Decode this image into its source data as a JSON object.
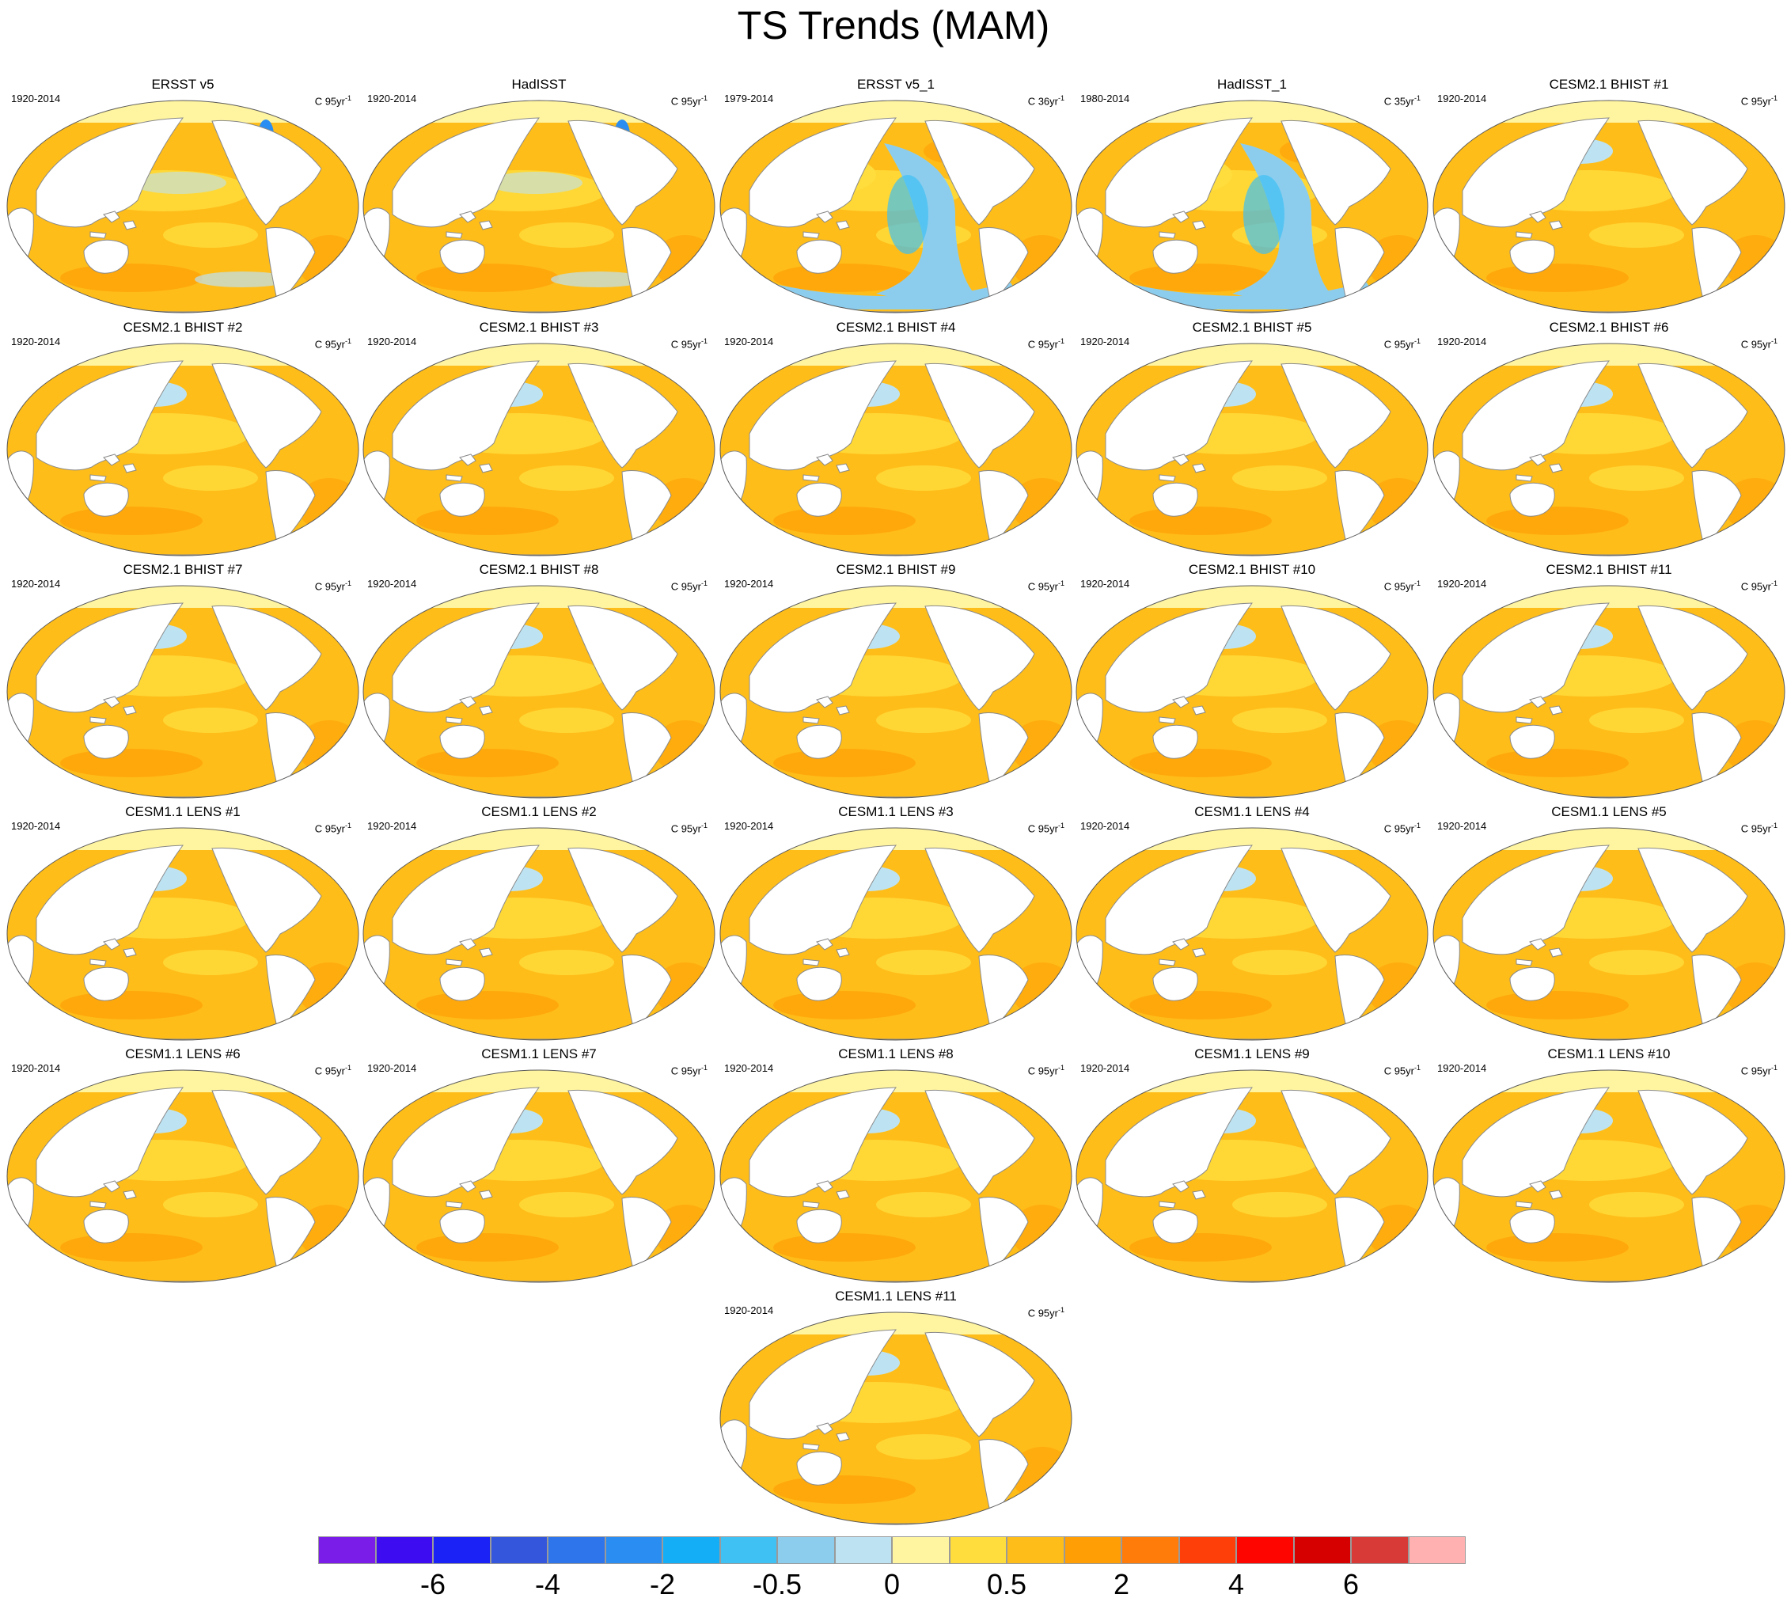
{
  "figure": {
    "title": "TS Trends (MAM)"
  },
  "panels": [
    {
      "title": "ERSST v5",
      "period": "1920-2014",
      "units": "C 95yr",
      "units_exp": "-1",
      "variant": "obs"
    },
    {
      "title": "HadISST",
      "period": "1920-2014",
      "units": "C 95yr",
      "units_exp": "-1",
      "variant": "obs"
    },
    {
      "title": "ERSST v5_1",
      "period": "1979-2014",
      "units": "C 36yr",
      "units_exp": "-1",
      "variant": "cool"
    },
    {
      "title": "HadISST_1",
      "period": "1980-2014",
      "units": "C 35yr",
      "units_exp": "-1",
      "variant": "cool"
    },
    {
      "title": "CESM2.1 BHIST #1",
      "period": "1920-2014",
      "units": "C 95yr",
      "units_exp": "-1",
      "variant": "model"
    },
    {
      "title": "CESM2.1 BHIST #2",
      "period": "1920-2014",
      "units": "C 95yr",
      "units_exp": "-1",
      "variant": "model"
    },
    {
      "title": "CESM2.1 BHIST #3",
      "period": "1920-2014",
      "units": "C 95yr",
      "units_exp": "-1",
      "variant": "model"
    },
    {
      "title": "CESM2.1 BHIST #4",
      "period": "1920-2014",
      "units": "C 95yr",
      "units_exp": "-1",
      "variant": "model"
    },
    {
      "title": "CESM2.1 BHIST #5",
      "period": "1920-2014",
      "units": "C 95yr",
      "units_exp": "-1",
      "variant": "model"
    },
    {
      "title": "CESM2.1 BHIST #6",
      "period": "1920-2014",
      "units": "C 95yr",
      "units_exp": "-1",
      "variant": "model"
    },
    {
      "title": "CESM2.1 BHIST #7",
      "period": "1920-2014",
      "units": "C 95yr",
      "units_exp": "-1",
      "variant": "model"
    },
    {
      "title": "CESM2.1 BHIST #8",
      "period": "1920-2014",
      "units": "C 95yr",
      "units_exp": "-1",
      "variant": "model"
    },
    {
      "title": "CESM2.1 BHIST #9",
      "period": "1920-2014",
      "units": "C 95yr",
      "units_exp": "-1",
      "variant": "model"
    },
    {
      "title": "CESM2.1 BHIST #10",
      "period": "1920-2014",
      "units": "C 95yr",
      "units_exp": "-1",
      "variant": "model"
    },
    {
      "title": "CESM2.1 BHIST #11",
      "period": "1920-2014",
      "units": "C 95yr",
      "units_exp": "-1",
      "variant": "model"
    },
    {
      "title": "CESM1.1 LENS #1",
      "period": "1920-2014",
      "units": "C 95yr",
      "units_exp": "-1",
      "variant": "lens"
    },
    {
      "title": "CESM1.1 LENS #2",
      "period": "1920-2014",
      "units": "C 95yr",
      "units_exp": "-1",
      "variant": "lens"
    },
    {
      "title": "CESM1.1 LENS #3",
      "period": "1920-2014",
      "units": "C 95yr",
      "units_exp": "-1",
      "variant": "lens"
    },
    {
      "title": "CESM1.1 LENS #4",
      "period": "1920-2014",
      "units": "C 95yr",
      "units_exp": "-1",
      "variant": "lens"
    },
    {
      "title": "CESM1.1 LENS #5",
      "period": "1920-2014",
      "units": "C 95yr",
      "units_exp": "-1",
      "variant": "lens"
    },
    {
      "title": "CESM1.1 LENS #6",
      "period": "1920-2014",
      "units": "C 95yr",
      "units_exp": "-1",
      "variant": "lens"
    },
    {
      "title": "CESM1.1 LENS #7",
      "period": "1920-2014",
      "units": "C 95yr",
      "units_exp": "-1",
      "variant": "lens"
    },
    {
      "title": "CESM1.1 LENS #8",
      "period": "1920-2014",
      "units": "C 95yr",
      "units_exp": "-1",
      "variant": "lens"
    },
    {
      "title": "CESM1.1 LENS #9",
      "period": "1920-2014",
      "units": "C 95yr",
      "units_exp": "-1",
      "variant": "lens"
    },
    {
      "title": "CESM1.1 LENS #10",
      "period": "1920-2014",
      "units": "C 95yr",
      "units_exp": "-1",
      "variant": "lens"
    },
    {
      "title": "CESM1.1 LENS #11",
      "period": "1920-2014",
      "units": "C 95yr",
      "units_exp": "-1",
      "variant": "lens"
    }
  ],
  "colorbar": {
    "colors": [
      "#7a1de8",
      "#3d0cf0",
      "#1a22f5",
      "#3456dd",
      "#2e74ea",
      "#2a8df2",
      "#14aef7",
      "#3fc1f4",
      "#8ccdee",
      "#bde3f3",
      "#fff4a0",
      "#ffdd3c",
      "#ffbd19",
      "#ff9f05",
      "#ff7c0a",
      "#ff3f0a",
      "#ff0500",
      "#d60000",
      "#d83a37",
      "#ffb1b1"
    ],
    "tick_labels": [
      "-6",
      "-4",
      "-2",
      "-0.5",
      "0",
      "0.5",
      "2",
      "4",
      "6"
    ]
  }
}
